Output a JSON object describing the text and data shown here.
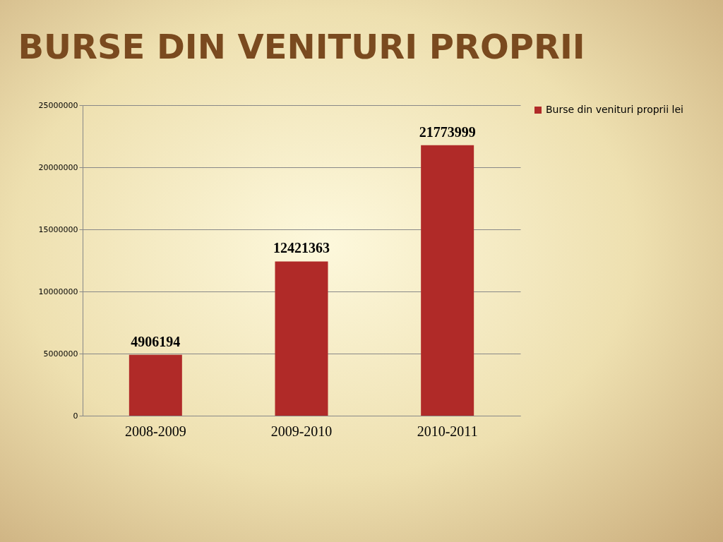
{
  "chart_data": {
    "type": "bar",
    "title": "BURSE DIN VENITURI PROPRII",
    "categories": [
      "2008-2009",
      "2009-2010",
      "2010-2011"
    ],
    "series": [
      {
        "name": "Burse din venituri proprii lei",
        "color": "#b02a28",
        "values": [
          4906194,
          12421363,
          21773999
        ]
      }
    ],
    "ylim": [
      0,
      25000000
    ],
    "yticks": [
      0,
      5000000,
      10000000,
      15000000,
      20000000,
      25000000
    ],
    "grid": "y",
    "legend": "right",
    "data_labels": true
  }
}
